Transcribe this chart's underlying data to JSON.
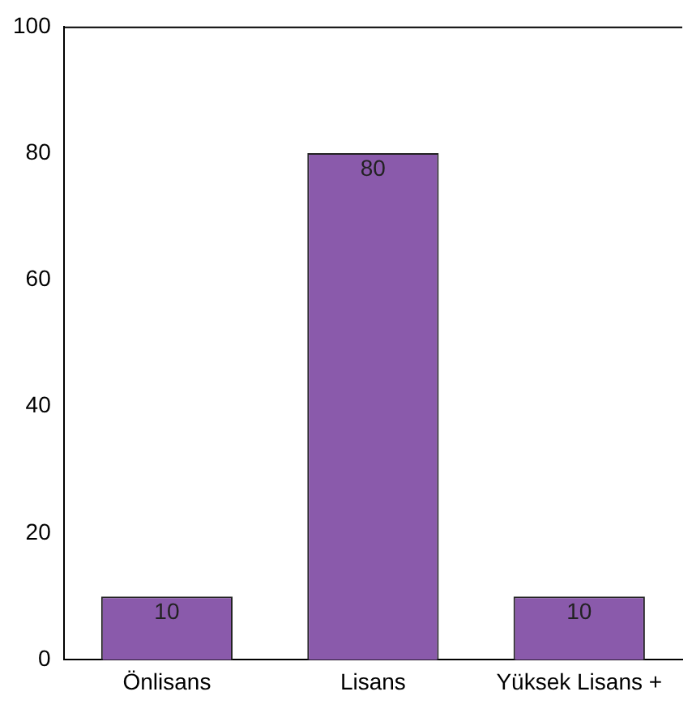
{
  "chart_data": {
    "type": "bar",
    "categories": [
      "Önlisans",
      "Lisans",
      "Yüksek Lisans +"
    ],
    "values": [
      10,
      80,
      10
    ],
    "color": "#8a5aab",
    "ylim": [
      0,
      100
    ],
    "yticks": [
      0,
      20,
      40,
      60,
      80,
      100
    ],
    "grid": false,
    "legend": false,
    "data_labels": true
  }
}
